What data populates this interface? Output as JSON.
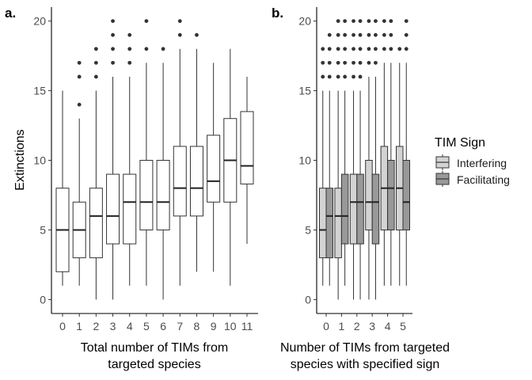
{
  "chart_data": [
    {
      "panel_label": "a.",
      "type": "box",
      "categories": [
        "0",
        "1",
        "2",
        "3",
        "4",
        "5",
        "6",
        "7",
        "8",
        "9",
        "10",
        "11"
      ],
      "xlabel": [
        "Total number of TIMs from",
        "targeted species"
      ],
      "ylabel": "Extinctions",
      "ylim": [
        -1,
        21
      ],
      "yticks": [
        0,
        5,
        10,
        15,
        20
      ],
      "fill": "#ffffff",
      "boxes": [
        {
          "x": "0",
          "whisker_low": 1,
          "q1": 2,
          "median": 5,
          "q3": 8,
          "whisker_high": 15,
          "outliers": []
        },
        {
          "x": "1",
          "whisker_low": 1,
          "q1": 3,
          "median": 5,
          "q3": 7,
          "whisker_high": 13,
          "outliers": [
            14,
            16,
            17
          ]
        },
        {
          "x": "2",
          "whisker_low": 0,
          "q1": 3,
          "median": 6,
          "q3": 8,
          "whisker_high": 15,
          "outliers": [
            16,
            17,
            18
          ]
        },
        {
          "x": "3",
          "whisker_low": 0,
          "q1": 4,
          "median": 6,
          "q3": 9,
          "whisker_high": 16,
          "outliers": [
            17,
            18,
            19,
            20
          ]
        },
        {
          "x": "4",
          "whisker_low": 1,
          "q1": 4,
          "median": 7,
          "q3": 9,
          "whisker_high": 16,
          "outliers": [
            17,
            18,
            19
          ]
        },
        {
          "x": "5",
          "whisker_low": 1,
          "q1": 5,
          "median": 7,
          "q3": 10,
          "whisker_high": 17,
          "outliers": [
            18,
            20
          ]
        },
        {
          "x": "6",
          "whisker_low": 0,
          "q1": 5,
          "median": 7,
          "q3": 10,
          "whisker_high": 17,
          "outliers": [
            18
          ]
        },
        {
          "x": "7",
          "whisker_low": 1,
          "q1": 6,
          "median": 8,
          "q3": 11,
          "whisker_high": 18,
          "outliers": [
            19,
            20
          ]
        },
        {
          "x": "8",
          "whisker_low": 2,
          "q1": 6,
          "median": 8,
          "q3": 11,
          "whisker_high": 18,
          "outliers": [
            19
          ]
        },
        {
          "x": "9",
          "whisker_low": 2,
          "q1": 7,
          "median": 8.5,
          "q3": 11.8,
          "whisker_high": 17,
          "outliers": []
        },
        {
          "x": "10",
          "whisker_low": 1,
          "q1": 7,
          "median": 10,
          "q3": 13,
          "whisker_high": 18,
          "outliers": []
        },
        {
          "x": "11",
          "whisker_low": 4,
          "q1": 8.3,
          "median": 9.6,
          "q3": 13.5,
          "whisker_high": 16,
          "outliers": []
        }
      ]
    },
    {
      "panel_label": "b.",
      "type": "box",
      "categories": [
        "0",
        "1",
        "2",
        "3",
        "4",
        "5"
      ],
      "xlabel": [
        "Number of TIMs from targeted",
        "species with specified sign"
      ],
      "ylabel": "",
      "ylim": [
        -1,
        21
      ],
      "yticks": [
        0,
        5,
        10,
        15,
        20
      ],
      "legend": {
        "title": "TIM Sign",
        "position": "right",
        "entries": [
          {
            "name": "Interfering",
            "color": "#d3d3d3"
          },
          {
            "name": "Facilitating",
            "color": "#999999"
          }
        ]
      },
      "series": [
        {
          "name": "Interfering",
          "color": "#d3d3d3",
          "boxes": [
            {
              "x": "0",
              "whisker_low": 1,
              "q1": 3,
              "median": 5,
              "q3": 8,
              "whisker_high": 15,
              "outliers": [
                16,
                17,
                18
              ]
            },
            {
              "x": "1",
              "whisker_low": 0,
              "q1": 3,
              "median": 6,
              "q3": 8,
              "whisker_high": 15,
              "outliers": [
                16,
                17,
                18,
                19,
                20
              ]
            },
            {
              "x": "2",
              "whisker_low": 0,
              "q1": 4,
              "median": 7,
              "q3": 9,
              "whisker_high": 15,
              "outliers": [
                16,
                17,
                18,
                19,
                20
              ]
            },
            {
              "x": "3",
              "whisker_low": 0,
              "q1": 5,
              "median": 7,
              "q3": 10,
              "whisker_high": 16,
              "outliers": [
                17,
                18,
                19,
                20
              ]
            },
            {
              "x": "4",
              "whisker_low": 1,
              "q1": 5,
              "median": 8,
              "q3": 11,
              "whisker_high": 17,
              "outliers": [
                18,
                19,
                20
              ]
            },
            {
              "x": "5",
              "whisker_low": 1,
              "q1": 5,
              "median": 8,
              "q3": 11,
              "whisker_high": 17,
              "outliers": [
                18
              ]
            }
          ]
        },
        {
          "name": "Facilitating",
          "color": "#999999",
          "boxes": [
            {
              "x": "0",
              "whisker_low": 1,
              "q1": 3,
              "median": 6,
              "q3": 8,
              "whisker_high": 15,
              "outliers": [
                16,
                17,
                18,
                19
              ]
            },
            {
              "x": "1",
              "whisker_low": 1,
              "q1": 4,
              "median": 6,
              "q3": 9,
              "whisker_high": 15,
              "outliers": [
                16,
                17,
                18,
                19,
                20
              ]
            },
            {
              "x": "2",
              "whisker_low": 0,
              "q1": 4,
              "median": 7,
              "q3": 9,
              "whisker_high": 15,
              "outliers": [
                16,
                17,
                18,
                19,
                20
              ]
            },
            {
              "x": "3",
              "whisker_low": 0,
              "q1": 4,
              "median": 7,
              "q3": 9,
              "whisker_high": 16,
              "outliers": [
                17,
                18,
                19,
                20
              ]
            },
            {
              "x": "4",
              "whisker_low": 1,
              "q1": 5,
              "median": 8,
              "q3": 10,
              "whisker_high": 17,
              "outliers": [
                18,
                19,
                20
              ]
            },
            {
              "x": "5",
              "whisker_low": 1,
              "q1": 5,
              "median": 7,
              "q3": 10,
              "whisker_high": 17,
              "outliers": [
                18,
                19,
                20
              ]
            }
          ]
        }
      ]
    }
  ]
}
